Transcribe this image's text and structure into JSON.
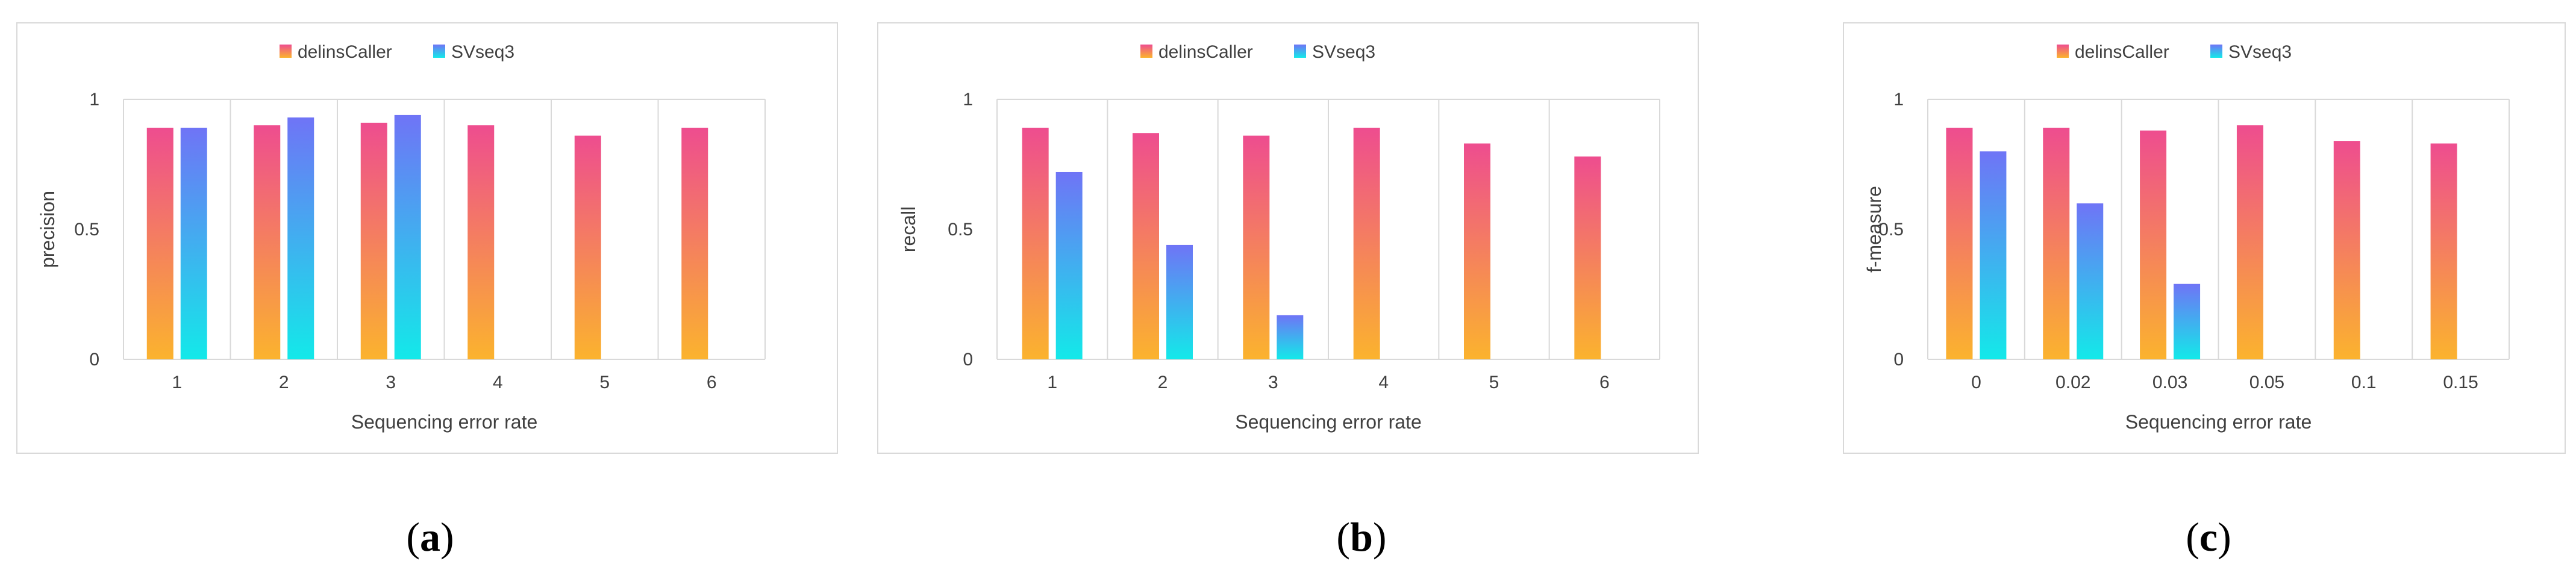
{
  "colors": {
    "delins_top": "#ee4d8f",
    "delins_bottom": "#fbb32e",
    "svseq_top": "#6f74f6",
    "svseq_bottom": "#13e9e9",
    "grid": "#d9d9d9",
    "frame": "#d9d9d9"
  },
  "chart_data": [
    {
      "type": "bar",
      "panel_label": "(a)",
      "panel_letter": "a",
      "ylabel": "precision",
      "xlabel": "Sequencing error rate",
      "ylim": [
        0,
        1
      ],
      "yticks": [
        "0",
        "0.5",
        "1"
      ],
      "ytick_values": [
        0,
        0.5,
        1
      ],
      "categories": [
        "1",
        "2",
        "3",
        "4",
        "5",
        "6"
      ],
      "legend": [
        "delinsCaller",
        "SVseq3"
      ],
      "series": [
        {
          "name": "delinsCaller",
          "values": [
            0.89,
            0.9,
            0.91,
            0.9,
            0.86,
            0.89
          ]
        },
        {
          "name": "SVseq3",
          "values": [
            0.89,
            0.93,
            0.94,
            null,
            null,
            null
          ]
        }
      ]
    },
    {
      "type": "bar",
      "panel_label": "(b)",
      "panel_letter": "b",
      "ylabel": "recall",
      "xlabel": "Sequencing error rate",
      "ylim": [
        0,
        1
      ],
      "yticks": [
        "0",
        "0.5",
        "1"
      ],
      "ytick_values": [
        0,
        0.5,
        1
      ],
      "categories": [
        "1",
        "2",
        "3",
        "4",
        "5",
        "6"
      ],
      "legend": [
        "delinsCaller",
        "SVseq3"
      ],
      "series": [
        {
          "name": "delinsCaller",
          "values": [
            0.89,
            0.87,
            0.86,
            0.89,
            0.83,
            0.78
          ]
        },
        {
          "name": "SVseq3",
          "values": [
            0.72,
            0.44,
            0.17,
            null,
            null,
            null
          ]
        }
      ]
    },
    {
      "type": "bar",
      "panel_label": "(c)",
      "panel_letter": "c",
      "ylabel": "f-measure",
      "xlabel": "Sequencing error rate",
      "ylim": [
        0,
        1
      ],
      "yticks": [
        "0",
        "0.5",
        "1"
      ],
      "ytick_values": [
        0,
        0.5,
        1
      ],
      "categories": [
        "0",
        "0.02",
        "0.03",
        "0.05",
        "0.1",
        "0.15"
      ],
      "legend": [
        "delinsCaller",
        "SVseq3"
      ],
      "series": [
        {
          "name": "delinsCaller",
          "values": [
            0.89,
            0.89,
            0.88,
            0.9,
            0.84,
            0.83
          ]
        },
        {
          "name": "SVseq3",
          "values": [
            0.8,
            0.6,
            0.29,
            null,
            null,
            null
          ]
        }
      ]
    }
  ]
}
